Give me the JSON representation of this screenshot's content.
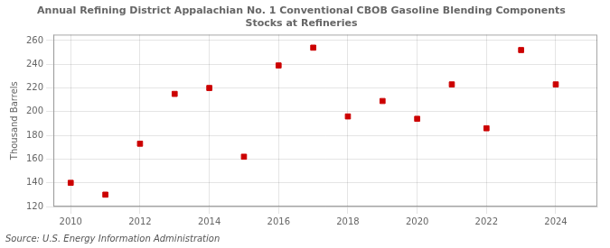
{
  "chart_data": {
    "type": "scatter",
    "title": "Annual Refining District Appalachian No. 1 Conventional CBOB Gasoline Blending Components\nStocks at Refineries",
    "ylabel": "Thousand Barrels",
    "annotations": [
      "Source: U.S. Energy Information Administration"
    ],
    "x": [
      2010,
      2011,
      2012,
      2013,
      2014,
      2015,
      2016,
      2017,
      2018,
      2019,
      2020,
      2021,
      2022,
      2023,
      2024
    ],
    "values": [
      140,
      130,
      173,
      215,
      220,
      162,
      239,
      254,
      196,
      209,
      194,
      223,
      186,
      252,
      223
    ],
    "color": "#cc0000",
    "marker": "square",
    "xlim": [
      2009.5,
      2025.2
    ],
    "ylim": [
      120,
      265
    ],
    "xticks": [
      2010,
      2012,
      2014,
      2016,
      2018,
      2020,
      2022,
      2024
    ],
    "yticks": [
      120,
      140,
      160,
      180,
      200,
      220,
      240,
      260
    ],
    "grid": true
  }
}
